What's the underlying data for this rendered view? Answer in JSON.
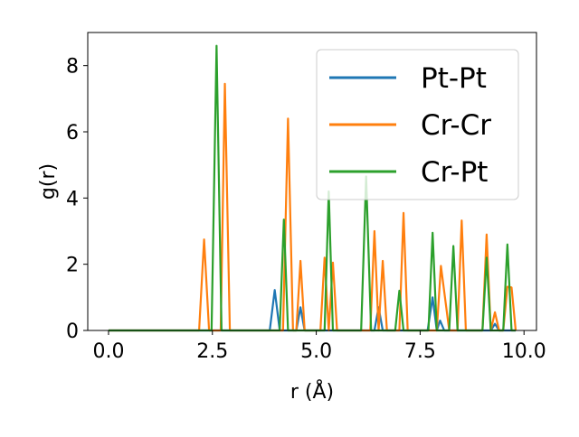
{
  "chart_data": {
    "type": "line",
    "title": "",
    "xlabel": "r (Å)",
    "ylabel": "g(r)",
    "xlim": [
      -0.5,
      10.3
    ],
    "ylim": [
      0,
      9.0
    ],
    "xticks": [
      0.0,
      2.5,
      5.0,
      7.5,
      10.0
    ],
    "xtick_labels": [
      "0.0",
      "2.5",
      "5.0",
      "7.5",
      "10.0"
    ],
    "yticks": [
      0,
      2,
      4,
      6,
      8
    ],
    "ytick_labels": [
      "0",
      "2",
      "4",
      "6",
      "8"
    ],
    "grid": false,
    "legend_position": "top-right",
    "series": [
      {
        "name": "Pt-Pt",
        "color": "#1f77b4",
        "x": [
          0.0,
          3.88,
          4.0,
          4.12,
          4.52,
          4.62,
          4.72,
          6.4,
          6.5,
          6.6,
          7.68,
          7.8,
          7.9,
          7.98,
          8.08,
          9.2,
          9.3,
          9.4,
          9.8
        ],
        "y": [
          0,
          0,
          1.22,
          0,
          0,
          0.7,
          0,
          0,
          0.7,
          0,
          0,
          1.0,
          0,
          0.3,
          0,
          0,
          0.2,
          0,
          0
        ]
      },
      {
        "name": "Cr-Cr",
        "color": "#ff7f0e",
        "x": [
          0.0,
          2.18,
          2.3,
          2.42,
          2.7,
          2.8,
          2.92,
          4.2,
          4.32,
          4.44,
          4.52,
          4.62,
          4.72,
          5.1,
          5.2,
          5.3,
          5.4,
          5.5,
          6.3,
          6.4,
          6.5,
          6.6,
          6.7,
          7.0,
          7.1,
          7.2,
          7.9,
          8.0,
          8.2,
          8.4,
          8.5,
          8.6,
          9.0,
          9.1,
          9.2,
          9.3,
          9.4,
          9.5,
          9.6,
          9.7,
          9.8
        ],
        "y": [
          0,
          0,
          2.75,
          0,
          0,
          7.45,
          0,
          0,
          6.4,
          0,
          0,
          2.1,
          0,
          0,
          2.2,
          0,
          2.05,
          0,
          0,
          3.0,
          0,
          2.1,
          0,
          0,
          3.55,
          0,
          0,
          1.95,
          0,
          0,
          3.32,
          0,
          0,
          2.9,
          0,
          0.55,
          0,
          0,
          1.32,
          1.3,
          0
        ]
      },
      {
        "name": "Cr-Pt",
        "color": "#2ca02c",
        "x": [
          0.0,
          2.48,
          2.6,
          2.72,
          4.12,
          4.22,
          4.32,
          5.2,
          5.3,
          5.4,
          6.08,
          6.2,
          6.32,
          6.9,
          7.0,
          7.1,
          7.7,
          7.8,
          7.9,
          8.2,
          8.3,
          8.4,
          9.0,
          9.1,
          9.2,
          9.5,
          9.6,
          9.7,
          9.8
        ],
        "y": [
          0,
          0,
          8.6,
          0,
          0,
          3.35,
          0,
          0,
          4.2,
          0,
          0,
          4.65,
          0,
          0,
          1.2,
          0,
          0,
          2.95,
          0,
          0,
          2.55,
          0,
          0,
          2.2,
          0,
          0,
          2.6,
          0,
          0
        ]
      }
    ]
  }
}
